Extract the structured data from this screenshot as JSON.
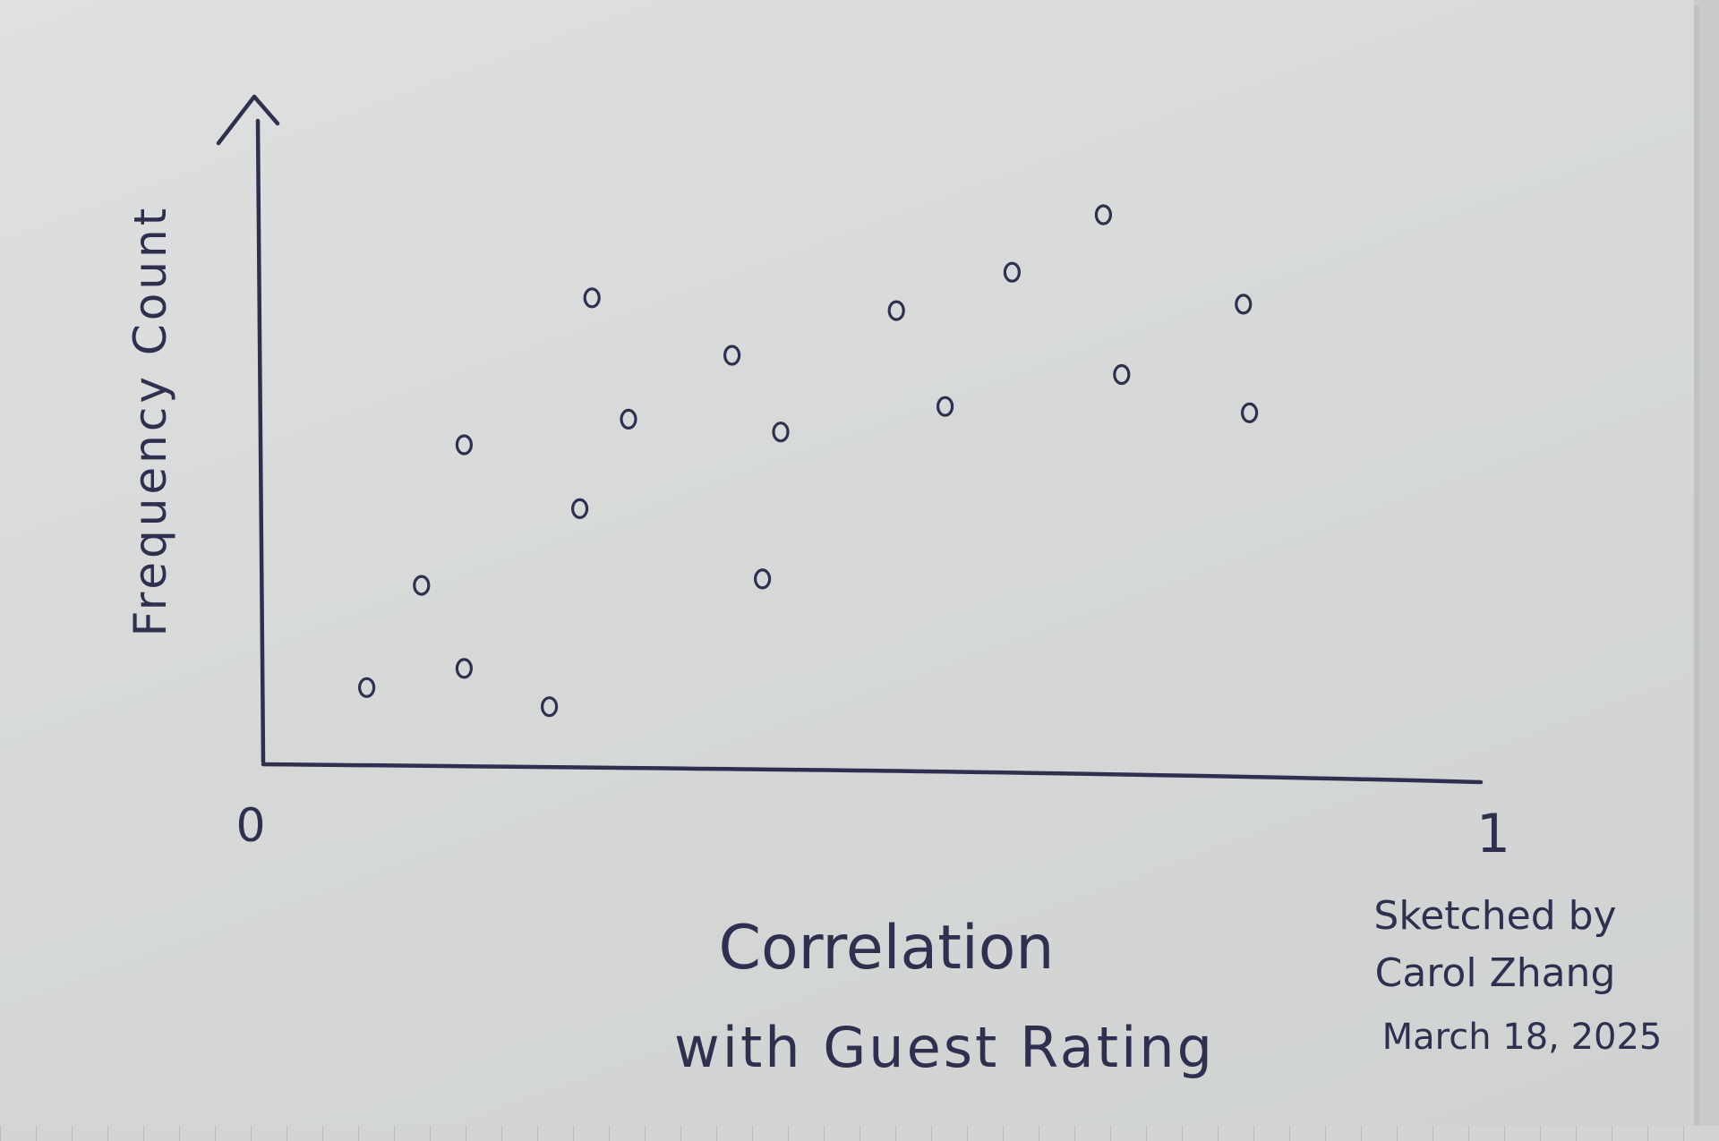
{
  "chart_data": {
    "type": "scatter",
    "xlabel_lines": [
      "Correlation",
      "with Guest Rating"
    ],
    "ylabel": "Frequency Count",
    "x_ticks": [
      "0",
      "1"
    ],
    "xlim": [
      0,
      1
    ],
    "ylim": [
      0,
      10
    ],
    "grid": false,
    "legend": "none",
    "points": [
      {
        "x": 0.085,
        "y": 1.2
      },
      {
        "x": 0.13,
        "y": 2.8
      },
      {
        "x": 0.165,
        "y": 1.5
      },
      {
        "x": 0.165,
        "y": 5.0
      },
      {
        "x": 0.235,
        "y": 0.9
      },
      {
        "x": 0.26,
        "y": 4.0
      },
      {
        "x": 0.27,
        "y": 7.3
      },
      {
        "x": 0.3,
        "y": 5.4
      },
      {
        "x": 0.385,
        "y": 6.4
      },
      {
        "x": 0.41,
        "y": 2.9
      },
      {
        "x": 0.425,
        "y": 5.2
      },
      {
        "x": 0.52,
        "y": 7.1
      },
      {
        "x": 0.56,
        "y": 5.6
      },
      {
        "x": 0.615,
        "y": 7.7
      },
      {
        "x": 0.69,
        "y": 8.6
      },
      {
        "x": 0.705,
        "y": 6.1
      },
      {
        "x": 0.805,
        "y": 7.2
      },
      {
        "x": 0.81,
        "y": 5.5
      }
    ]
  },
  "signature": [
    "Sketched by",
    "Carol Zhang",
    "March 18, 2025"
  ],
  "colors": {
    "ink": "#2f3050",
    "paper": "#dcdedd"
  }
}
